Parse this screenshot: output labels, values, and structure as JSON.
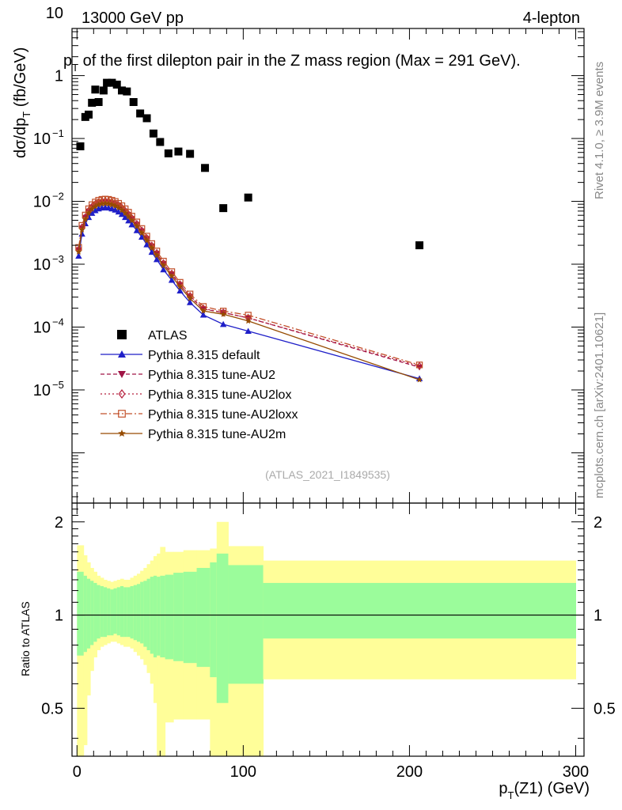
{
  "header": {
    "left": "13000 GeV pp",
    "right": "4-lepton",
    "title": "pT of the first dilepton pair in the Z mass region (Max = 291 GeV).",
    "side_top": "Rivet 4.1.0, ≥ 3.9M events",
    "side_bottom": "mcplots.cern.ch [arXiv:2401.10621]",
    "analysis": "(ATLAS_2021_I1849535)"
  },
  "chart_data": {
    "type": "scatter",
    "x_label": "p_T(Z1) (GeV)",
    "y_label_main": "dσ/dp_T (fb/GeV)",
    "y_label_ratio": "Ratio to ATLAS",
    "x_range": [
      -3,
      305
    ],
    "y_range_main_log10": [
      -6.8,
      0.75
    ],
    "y_range_ratio": [
      0.35,
      2.3
    ],
    "x_ticks": [
      0,
      100,
      200,
      300
    ],
    "y_ticks_main": [
      {
        "exp": -5,
        "label": "10",
        "sup": "−5"
      },
      {
        "exp": -4,
        "label": "10",
        "sup": "−4"
      },
      {
        "exp": -3,
        "label": "10",
        "sup": "−3"
      },
      {
        "exp": -2,
        "label": "10",
        "sup": "−2"
      },
      {
        "exp": -1,
        "label": "10",
        "sup": "−1"
      },
      {
        "exp": 0,
        "label": "1",
        "sup": ""
      },
      {
        "exp": 1,
        "label": "10",
        "sup": ""
      }
    ],
    "y_ticks_ratio": [
      0.5,
      1,
      2
    ],
    "y_ticks_ratio_labels": [
      "0.5",
      "1",
      "2"
    ],
    "atlas": {
      "name": "ATLAS",
      "x": [
        2,
        5,
        7,
        9,
        11,
        13,
        16,
        18,
        21,
        24,
        27,
        30,
        34,
        38,
        42,
        46,
        50,
        55,
        61,
        68,
        77,
        88,
        103,
        206
      ],
      "y": [
        0.075,
        0.22,
        0.24,
        0.37,
        0.6,
        0.38,
        0.58,
        0.77,
        0.77,
        0.72,
        0.58,
        0.56,
        0.38,
        0.25,
        0.21,
        0.12,
        0.088,
        0.058,
        0.062,
        0.057,
        0.034,
        0.0078,
        0.0115,
        0.002
      ]
    },
    "series": [
      {
        "name": "Pythia 8.315 default",
        "color": "#1f1fc8",
        "marker": "triangle-up",
        "dash": "",
        "scale": 0.82
      },
      {
        "name": "Pythia 8.315 tune-AU2",
        "color": "#a01546",
        "marker": "triangle-down",
        "dash": "5,3",
        "scale": 1.02
      },
      {
        "name": "Pythia 8.315 tune-AU2lox",
        "color": "#b51e3c",
        "marker": "diamond-open",
        "dash": "2,3",
        "scale": 1.04
      },
      {
        "name": "Pythia 8.315 tune-AU2loxx",
        "color": "#c2502a",
        "marker": "square-open",
        "dash": "8,3,2,3",
        "scale": 1.12
      },
      {
        "name": "Pythia 8.315 tune-AU2m",
        "color": "#964b00",
        "marker": "star",
        "dash": "",
        "scale": 0.95
      }
    ],
    "mc_x": [
      1,
      3,
      5,
      7,
      9,
      11,
      13,
      15,
      17,
      19,
      21,
      23,
      25,
      27,
      29,
      31,
      33,
      36,
      39,
      42,
      45,
      48,
      52,
      57,
      62,
      68,
      76,
      88,
      103,
      206
    ],
    "mc_base": [
      0.00165,
      0.0037,
      0.0054,
      0.0068,
      0.0079,
      0.0087,
      0.0093,
      0.0096,
      0.0097,
      0.0096,
      0.0093,
      0.0089,
      0.0083,
      0.0076,
      0.0068,
      0.006,
      0.0052,
      0.0042,
      0.0033,
      0.0025,
      0.0019,
      0.00145,
      0.001,
      0.00068,
      0.00046,
      0.0003,
      0.00019,
      0.000135,
      0.000105,
      1.85e-05
    ],
    "mc_tail_overrides": {
      "Pythia 8.315 tune-AU2": [
        0.00017,
        0.00014,
        2.3e-05
      ],
      "Pythia 8.315 tune-AU2lox": [
        0.00017,
        0.00014,
        2.4e-05
      ],
      "Pythia 8.315 tune-AU2loxx": [
        0.00018,
        0.000155,
        2.5e-05
      ],
      "Pythia 8.315 tune-AU2m": [
        0.00016,
        0.000125,
        1.45e-05
      ]
    },
    "ratio_bands": {
      "edges": [
        0,
        4,
        6,
        8,
        10,
        12,
        14,
        16,
        18,
        20,
        22,
        24,
        26,
        28,
        30,
        32,
        34,
        36,
        38,
        40,
        42,
        44,
        46,
        48,
        50,
        53,
        58,
        64,
        72,
        80,
        84,
        91,
        112,
        300
      ],
      "inner_hi": [
        1.38,
        1.34,
        1.31,
        1.29,
        1.27,
        1.25,
        1.24,
        1.23,
        1.22,
        1.21,
        1.22,
        1.23,
        1.24,
        1.23,
        1.23,
        1.24,
        1.25,
        1.26,
        1.28,
        1.29,
        1.31,
        1.33,
        1.34,
        1.33,
        1.34,
        1.35,
        1.37,
        1.38,
        1.42,
        1.48,
        1.58,
        1.45,
        1.27
      ],
      "inner_lo": [
        0.74,
        0.76,
        0.78,
        0.8,
        0.82,
        0.84,
        0.85,
        0.85,
        0.86,
        0.86,
        0.87,
        0.86,
        0.85,
        0.85,
        0.85,
        0.84,
        0.83,
        0.82,
        0.81,
        0.79,
        0.77,
        0.75,
        0.73,
        0.74,
        0.73,
        0.72,
        0.71,
        0.7,
        0.68,
        0.63,
        0.52,
        0.6,
        0.84
      ],
      "outer_hi": [
        1.68,
        1.56,
        1.48,
        1.42,
        1.38,
        1.34,
        1.32,
        1.3,
        1.29,
        1.28,
        1.29,
        1.3,
        1.31,
        1.3,
        1.3,
        1.32,
        1.34,
        1.36,
        1.39,
        1.42,
        1.46,
        1.5,
        1.55,
        1.58,
        1.66,
        1.6,
        1.6,
        1.62,
        1.62,
        1.64,
        2.0,
        1.67,
        1.5
      ],
      "outer_lo": [
        0.3,
        0.38,
        0.55,
        0.66,
        0.73,
        0.77,
        0.79,
        0.8,
        0.81,
        0.82,
        0.82,
        0.81,
        0.8,
        0.79,
        0.79,
        0.78,
        0.76,
        0.74,
        0.72,
        0.69,
        0.65,
        0.6,
        0.52,
        0.3,
        0.3,
        0.45,
        0.46,
        0.46,
        0.46,
        0.3,
        0.3,
        0.3,
        0.62
      ]
    },
    "colors": {
      "inner": "#9bfc9b",
      "outer": "#fffe99"
    }
  }
}
